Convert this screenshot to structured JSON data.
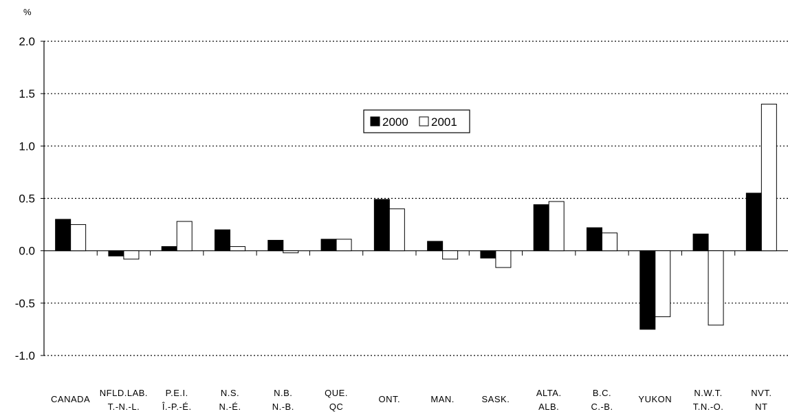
{
  "chart_data": {
    "type": "bar",
    "unit_label": "%",
    "ylim": [
      -1.0,
      2.0
    ],
    "y_ticks": [
      "2.0",
      "1.5",
      "1.0",
      "0.5",
      "0.0",
      "-0.5",
      "-1.0"
    ],
    "y_tick_values": [
      2.0,
      1.5,
      1.0,
      0.5,
      0.0,
      -0.5,
      -1.0
    ],
    "grid": "dotted horizontal",
    "legend_position": "upper-center",
    "categories": [
      [
        "CANADA"
      ],
      [
        "NFLD.LAB.",
        "T.-N.-L."
      ],
      [
        "P.E.I.",
        "Î.-P.-É."
      ],
      [
        "N.S.",
        "N.-É."
      ],
      [
        "N.B.",
        "N.-B."
      ],
      [
        "QUE.",
        "QC"
      ],
      [
        "ONT."
      ],
      [
        "MAN."
      ],
      [
        "SASK."
      ],
      [
        "ALTA.",
        "ALB."
      ],
      [
        "B.C.",
        "C.-B."
      ],
      [
        "YUKON"
      ],
      [
        "N.W.T.",
        "T.N.-O."
      ],
      [
        "NVT.",
        "NT"
      ]
    ],
    "series": [
      {
        "name": "2000",
        "color": "#000000",
        "values": [
          0.3,
          -0.05,
          0.04,
          0.2,
          0.1,
          0.11,
          0.49,
          0.09,
          -0.07,
          0.44,
          0.22,
          -0.75,
          0.16,
          0.55
        ]
      },
      {
        "name": "2001",
        "color": "#ffffff",
        "values": [
          0.25,
          -0.08,
          0.28,
          0.04,
          -0.02,
          0.11,
          0.4,
          -0.08,
          -0.16,
          0.47,
          0.17,
          -0.63,
          -0.71,
          1.4
        ]
      }
    ]
  }
}
